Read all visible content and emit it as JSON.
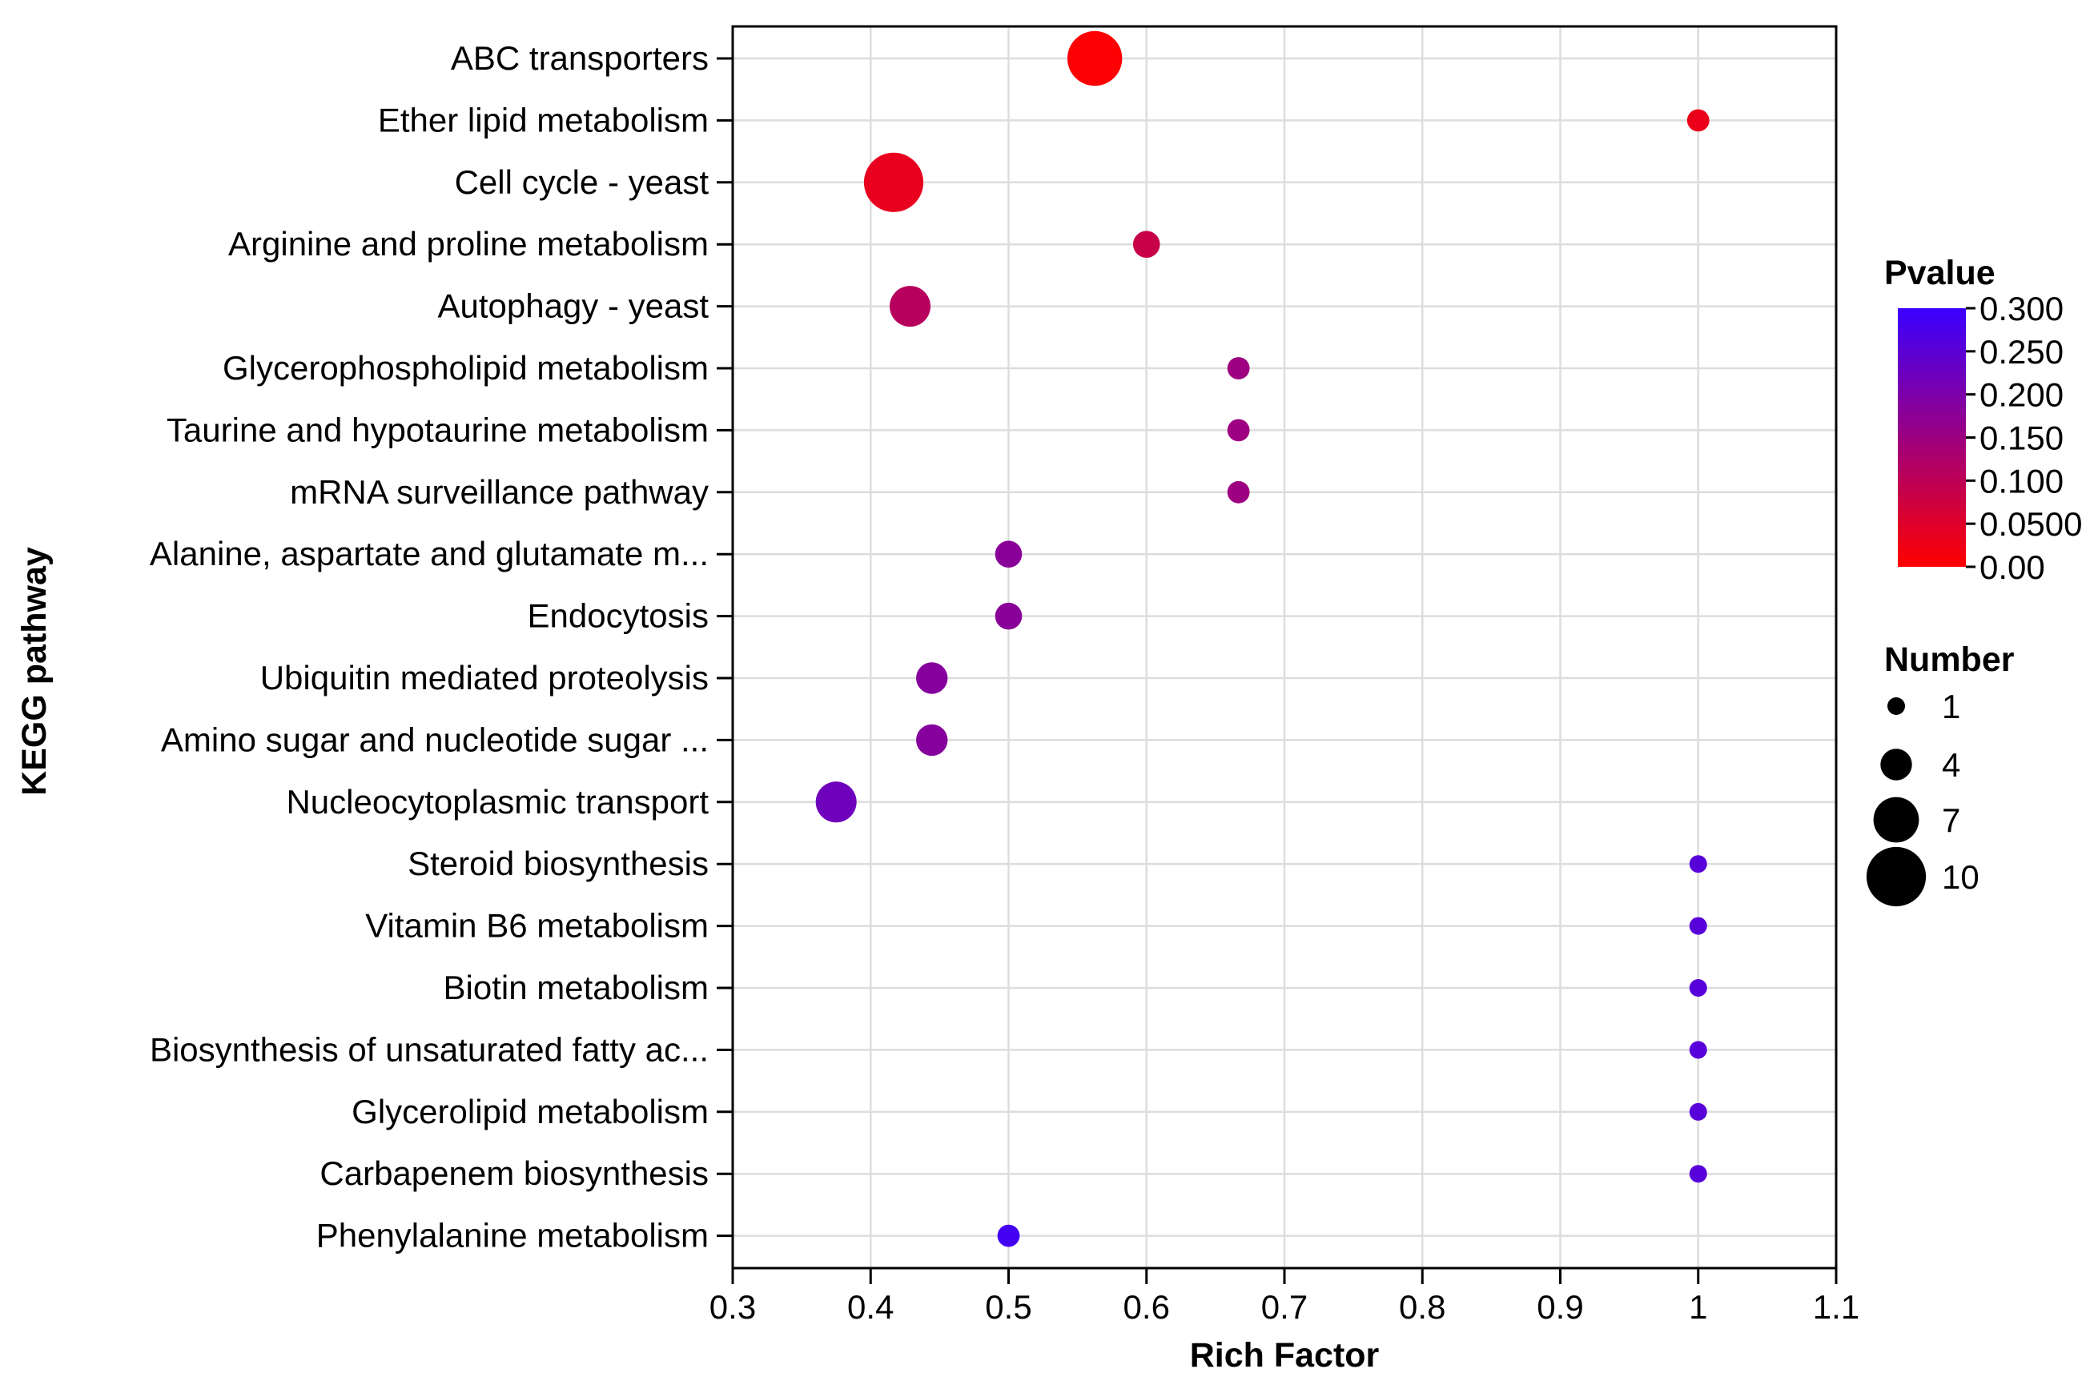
{
  "chart_data": {
    "type": "scatter",
    "title": "",
    "xlabel": "Rich Factor",
    "ylabel": "KEGG pathway",
    "xlim": [
      0.3,
      1.1
    ],
    "x_ticks": [
      "0.3",
      "0.4",
      "0.5",
      "0.6",
      "0.7",
      "0.8",
      "0.9",
      "1",
      "1.1"
    ],
    "grid": true,
    "points": [
      {
        "label": "ABC transporters",
        "x": 0.5625,
        "number": 9,
        "pvalue": 0.005
      },
      {
        "label": "Ether lipid metabolism",
        "x": 1.0,
        "number": 2,
        "pvalue": 0.03
      },
      {
        "label": "Cell cycle - yeast",
        "x": 0.4167,
        "number": 10,
        "pvalue": 0.035
      },
      {
        "label": "Arginine and proline metabolism",
        "x": 0.6,
        "number": 3,
        "pvalue": 0.085
      },
      {
        "label": "Autophagy - yeast",
        "x": 0.4286,
        "number": 6,
        "pvalue": 0.11
      },
      {
        "label": "Glycerophospholipid metabolism",
        "x": 0.6667,
        "number": 2,
        "pvalue": 0.15
      },
      {
        "label": "Taurine and hypotaurine metabolism",
        "x": 0.6667,
        "number": 2,
        "pvalue": 0.15
      },
      {
        "label": "mRNA surveillance pathway",
        "x": 0.6667,
        "number": 2,
        "pvalue": 0.15
      },
      {
        "label": "Alanine, aspartate and glutamate m...",
        "x": 0.5,
        "number": 3,
        "pvalue": 0.18
      },
      {
        "label": "Endocytosis",
        "x": 0.5,
        "number": 3,
        "pvalue": 0.18
      },
      {
        "label": "Ubiquitin mediated proteolysis",
        "x": 0.4444,
        "number": 4,
        "pvalue": 0.185
      },
      {
        "label": "Amino sugar and nucleotide sugar ...",
        "x": 0.4444,
        "number": 4,
        "pvalue": 0.185
      },
      {
        "label": "Nucleocytoplasmic transport",
        "x": 0.375,
        "number": 6,
        "pvalue": 0.22
      },
      {
        "label": "Steroid biosynthesis",
        "x": 1.0,
        "number": 1,
        "pvalue": 0.255
      },
      {
        "label": "Vitamin B6 metabolism",
        "x": 1.0,
        "number": 1,
        "pvalue": 0.255
      },
      {
        "label": "Biotin metabolism",
        "x": 1.0,
        "number": 1,
        "pvalue": 0.255
      },
      {
        "label": "Biosynthesis of unsaturated fatty ac...",
        "x": 1.0,
        "number": 1,
        "pvalue": 0.255
      },
      {
        "label": "Glycerolipid metabolism",
        "x": 1.0,
        "number": 1,
        "pvalue": 0.255
      },
      {
        "label": "Carbapenem biosynthesis",
        "x": 1.0,
        "number": 1,
        "pvalue": 0.255
      },
      {
        "label": "Phenylalanine metabolism",
        "x": 0.5,
        "number": 2,
        "pvalue": 0.285
      }
    ],
    "color_legend": {
      "title": "Pvalue",
      "range": [
        0.0,
        0.3
      ],
      "low_color": "#ff0000",
      "high_color": "#3a00ff",
      "tick_values": [
        0.3,
        0.25,
        0.2,
        0.15,
        0.1,
        0.05,
        0.0
      ],
      "tick_labels": [
        "0.300",
        "0.250",
        "0.200",
        "0.150",
        "0.100",
        "0.0500",
        "0.00"
      ]
    },
    "size_legend": {
      "title": "Number",
      "values": [
        1,
        4,
        7,
        10
      ],
      "labels": [
        "1",
        "4",
        "7",
        "10"
      ],
      "color": "#000000"
    }
  }
}
